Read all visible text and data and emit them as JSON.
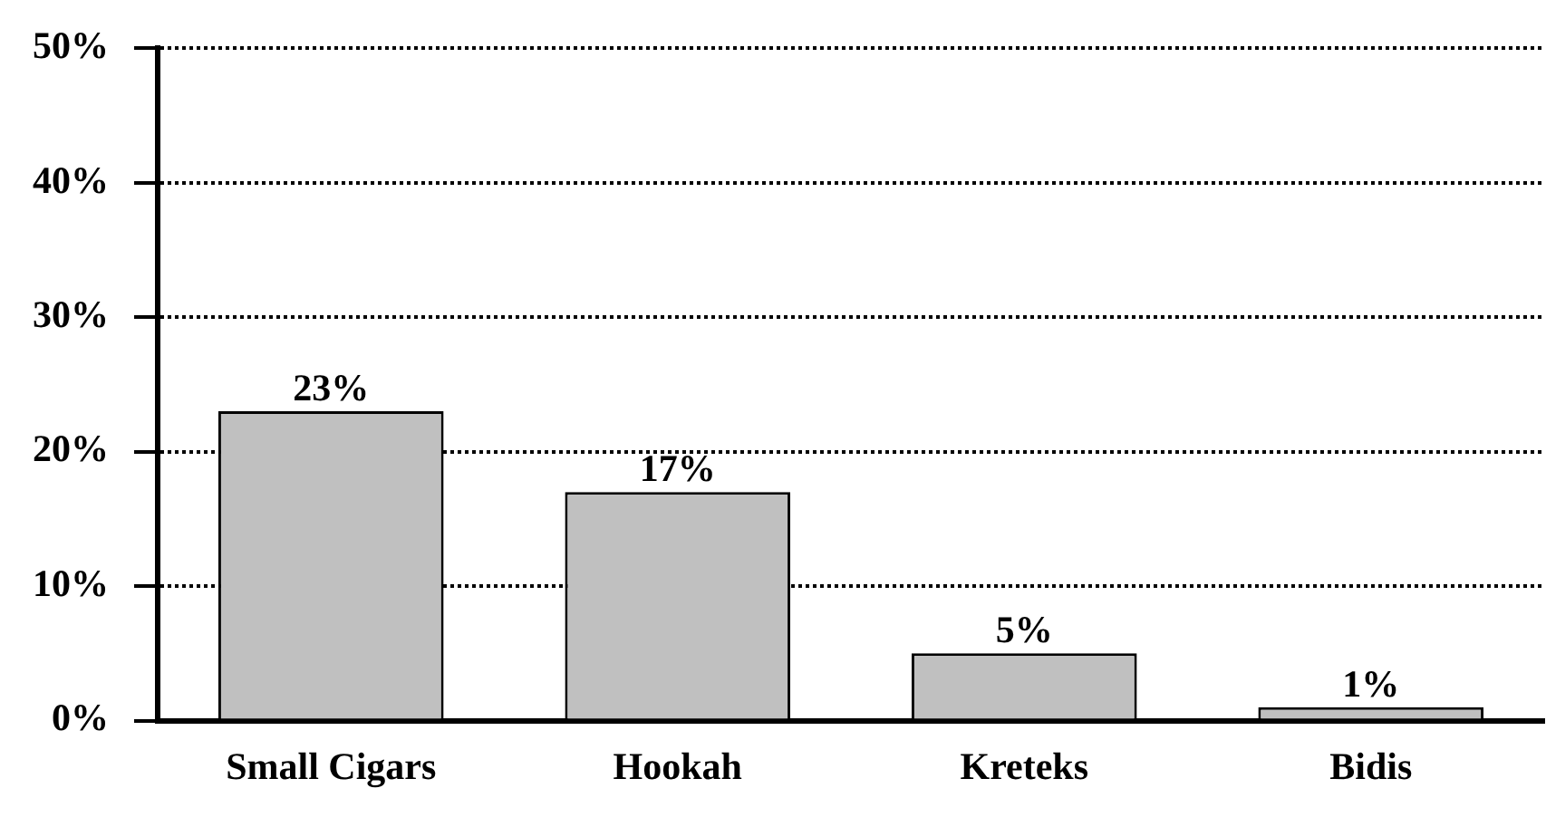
{
  "chart_data": {
    "type": "bar",
    "categories": [
      "Small Cigars",
      "Hookah",
      "Kreteks",
      "Bidis"
    ],
    "values": [
      23,
      17,
      5,
      1
    ],
    "color": "#c0c0c0",
    "value_labels": [
      "23%",
      "17%",
      "5%",
      "1%"
    ],
    "ylim": [
      0,
      50
    ],
    "yticks": [
      {
        "value": 0,
        "label": "0%"
      },
      {
        "value": 10,
        "label": "10%"
      },
      {
        "value": 20,
        "label": "20%"
      },
      {
        "value": 30,
        "label": "30%"
      },
      {
        "value": 40,
        "label": "40%"
      },
      {
        "value": 50,
        "label": "50%"
      }
    ],
    "grid": "y"
  }
}
